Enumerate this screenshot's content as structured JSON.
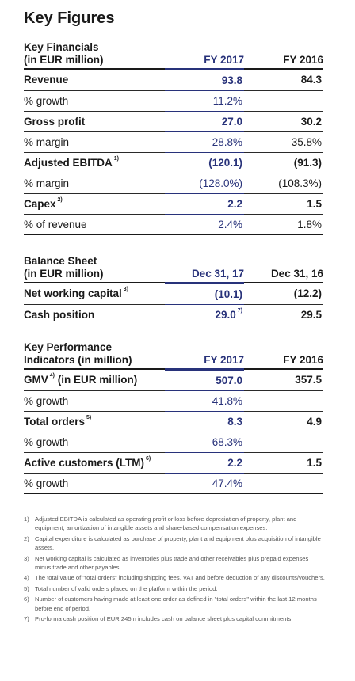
{
  "title": "Key Figures",
  "financials": {
    "header": [
      "Key Financials",
      "(in EUR million)"
    ],
    "col1": "FY 2017",
    "col2": "FY 2016",
    "rows": [
      {
        "label": "Revenue",
        "sup": "",
        "v1": "93.8",
        "v2": "84.3",
        "bold": true
      },
      {
        "label": "% growth",
        "sup": "",
        "v1": "11.2%",
        "v2": "",
        "bold": false
      },
      {
        "label": "Gross profit",
        "sup": "",
        "v1": "27.0",
        "v2": "30.2",
        "bold": true
      },
      {
        "label": "% margin",
        "sup": "",
        "v1": "28.8%",
        "v2": "35.8%",
        "bold": false
      },
      {
        "label": "Adjusted EBITDA",
        "sup": "1)",
        "v1": "(120.1)",
        "v2": "(91.3)",
        "bold": true
      },
      {
        "label": "% margin",
        "sup": "",
        "v1": "(128.0%)",
        "v2": "(108.3%)",
        "bold": false
      },
      {
        "label": "Capex",
        "sup": "2)",
        "v1": "2.2",
        "v2": "1.5",
        "bold": true
      },
      {
        "label": "% of revenue",
        "sup": "",
        "v1": "2.4%",
        "v2": "1.8%",
        "bold": false
      }
    ]
  },
  "balance": {
    "header": [
      "Balance Sheet",
      "(in EUR million)"
    ],
    "col1": "Dec 31, 17",
    "col2": "Dec 31, 16",
    "rows": [
      {
        "label": "Net working capital",
        "sup": "3)",
        "v1": "(10.1)",
        "v1sup": "",
        "v2": "(12.2)",
        "bold": true
      },
      {
        "label": "Cash position",
        "sup": "",
        "v1": "29.0",
        "v1sup": "7)",
        "v2": "29.5",
        "bold": true
      }
    ]
  },
  "kpi": {
    "header": [
      "Key Performance",
      "Indicators (in million)"
    ],
    "col1": "FY 2017",
    "col2": "FY 2016",
    "rows": [
      {
        "label": "GMV",
        "sup": "4)",
        "suffix": " (in EUR million)",
        "v1": "507.0",
        "v2": "357.5",
        "bold": true
      },
      {
        "label": "% growth",
        "sup": "",
        "suffix": "",
        "v1": "41.8%",
        "v2": "",
        "bold": false
      },
      {
        "label": "Total orders",
        "sup": "5)",
        "suffix": "",
        "v1": "8.3",
        "v2": "4.9",
        "bold": true
      },
      {
        "label": "% growth",
        "sup": "",
        "suffix": "",
        "v1": "68.3%",
        "v2": "",
        "bold": false
      },
      {
        "label": "Active customers (LTM)",
        "sup": "6)",
        "suffix": "",
        "v1": "2.2",
        "v2": "1.5",
        "bold": true
      },
      {
        "label": "% growth",
        "sup": "",
        "suffix": "",
        "v1": "47.4%",
        "v2": "",
        "bold": false
      }
    ]
  },
  "notes": [
    {
      "n": "1)",
      "text": "Adjusted EBITDA is calculated as operating profit or loss before depreciation of property, plant and equipment, amortization of intangible assets and share-based compensation expenses."
    },
    {
      "n": "2)",
      "text": "Capital expenditure is calculated as purchase of property, plant and equipment plus acquisition of intangible assets."
    },
    {
      "n": "3)",
      "text": "Net working capital is calculated as inventories plus trade and other receivables plus prepaid expenses minus trade and other payables."
    },
    {
      "n": "4)",
      "text": "The total value of \"total orders\" including shipping fees, VAT and before deduction of any discounts/vouchers."
    },
    {
      "n": "5)",
      "text": "Total number of valid orders placed on the platform within the period."
    },
    {
      "n": "6)",
      "text": "Number of customers having made at least one order as defined in \"total orders\" within the last 12 months before end of period."
    },
    {
      "n": "7)",
      "text": "Pro-forma cash position of EUR 245m includes cash on balance sheet plus capital commitments."
    }
  ]
}
